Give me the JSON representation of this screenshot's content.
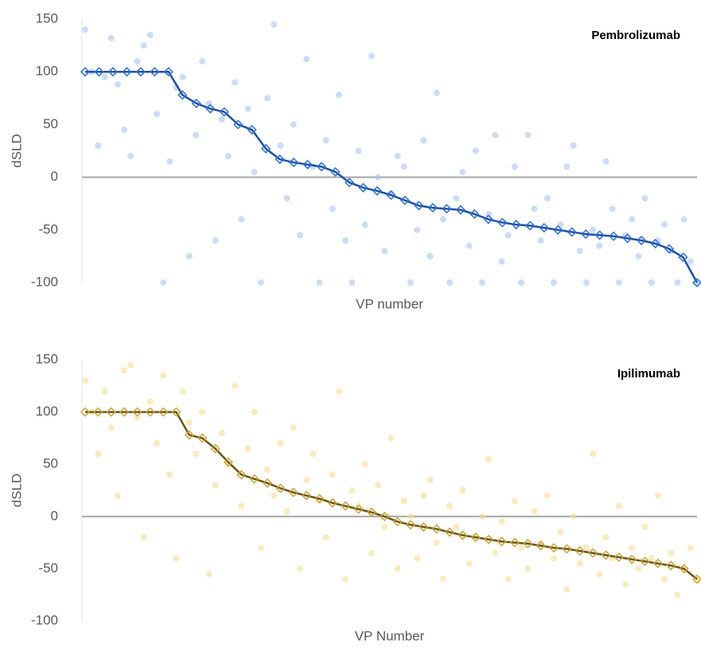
{
  "chart_data": [
    {
      "type": "scatter",
      "title": "Pembrolizumab",
      "x_label": "VP number",
      "y_label": "dSLD",
      "ylim": [
        -100,
        150
      ],
      "yticks": [
        -100,
        -50,
        0,
        50,
        100,
        150
      ],
      "series": [
        {
          "mode": "markers",
          "color": "#a9c4ef",
          "values": [
            140,
            100,
            30,
            95,
            132,
            88,
            45,
            20,
            110,
            125,
            135,
            60,
            -100,
            15,
            85,
            95,
            -75,
            40,
            110,
            70,
            -60,
            55,
            20,
            90,
            -40,
            65,
            5,
            -100,
            75,
            145,
            30,
            -20,
            50,
            -55,
            112,
            10,
            -100,
            35,
            -30,
            78,
            -60,
            -100,
            25,
            -45,
            115,
            0,
            -70,
            -15,
            20,
            10,
            -100,
            -50,
            35,
            -75,
            80,
            -40,
            -100,
            -20,
            5,
            -65,
            25,
            -100,
            -35,
            40,
            -80,
            -55,
            10,
            -100,
            40,
            -30,
            -60,
            -20,
            -100,
            -45,
            10,
            30,
            -70,
            -100,
            -50,
            -65,
            15,
            -30,
            -100,
            -55,
            -40,
            -75,
            -20,
            -100,
            -60,
            -45,
            -70,
            -100,
            -40,
            -80,
            -100
          ]
        },
        {
          "mode": "lines+markers",
          "color": "#2e6fd6",
          "line_color": "#1d4f9e",
          "values": [
            100,
            100,
            100,
            100,
            100,
            100,
            100,
            78,
            70,
            65,
            62,
            50,
            45,
            27,
            17,
            14,
            12,
            10,
            5,
            -5,
            -10,
            -13,
            -17,
            -22,
            -27,
            -29,
            -30,
            -31,
            -35,
            -40,
            -43,
            -45,
            -46,
            -48,
            -50,
            -52,
            -54,
            -55,
            -56,
            -58,
            -60,
            -63,
            -68,
            -76,
            -100
          ]
        }
      ]
    },
    {
      "type": "scatter",
      "title": "Ipilimumab",
      "x_label": "VP Number",
      "y_label": "dSLD",
      "ylim": [
        -100,
        150
      ],
      "yticks": [
        -100,
        -50,
        0,
        50,
        100,
        150
      ],
      "series": [
        {
          "mode": "markers",
          "color": "#f6dc93",
          "values": [
            130,
            100,
            60,
            120,
            85,
            20,
            140,
            145,
            95,
            -20,
            110,
            70,
            135,
            40,
            -40,
            120,
            90,
            60,
            100,
            -55,
            30,
            80,
            50,
            125,
            10,
            65,
            100,
            -30,
            45,
            20,
            70,
            5,
            85,
            -50,
            35,
            60,
            15,
            -20,
            40,
            120,
            -60,
            25,
            10,
            50,
            -35,
            30,
            -10,
            75,
            -50,
            15,
            0,
            -40,
            20,
            35,
            -25,
            -60,
            10,
            -10,
            25,
            -45,
            -20,
            0,
            55,
            -35,
            -5,
            -60,
            15,
            -30,
            -50,
            5,
            -25,
            20,
            -40,
            -15,
            -70,
            0,
            -45,
            -30,
            60,
            -55,
            -20,
            -40,
            10,
            -65,
            -30,
            -50,
            -10,
            -40,
            20,
            -60,
            -35,
            -75,
            -50,
            -30,
            -60
          ]
        },
        {
          "mode": "lines+markers",
          "color": "#c9a53c",
          "line_color": "#6b5410",
          "values": [
            100,
            100,
            100,
            100,
            100,
            100,
            100,
            100,
            78,
            75,
            65,
            52,
            40,
            36,
            32,
            27,
            23,
            20,
            17,
            13,
            10,
            7,
            4,
            0,
            -5,
            -8,
            -10,
            -12,
            -15,
            -18,
            -20,
            -22,
            -24,
            -25,
            -26,
            -28,
            -30,
            -31,
            -33,
            -35,
            -37,
            -39,
            -41,
            -43,
            -45,
            -47,
            -50,
            -60
          ]
        }
      ]
    }
  ]
}
